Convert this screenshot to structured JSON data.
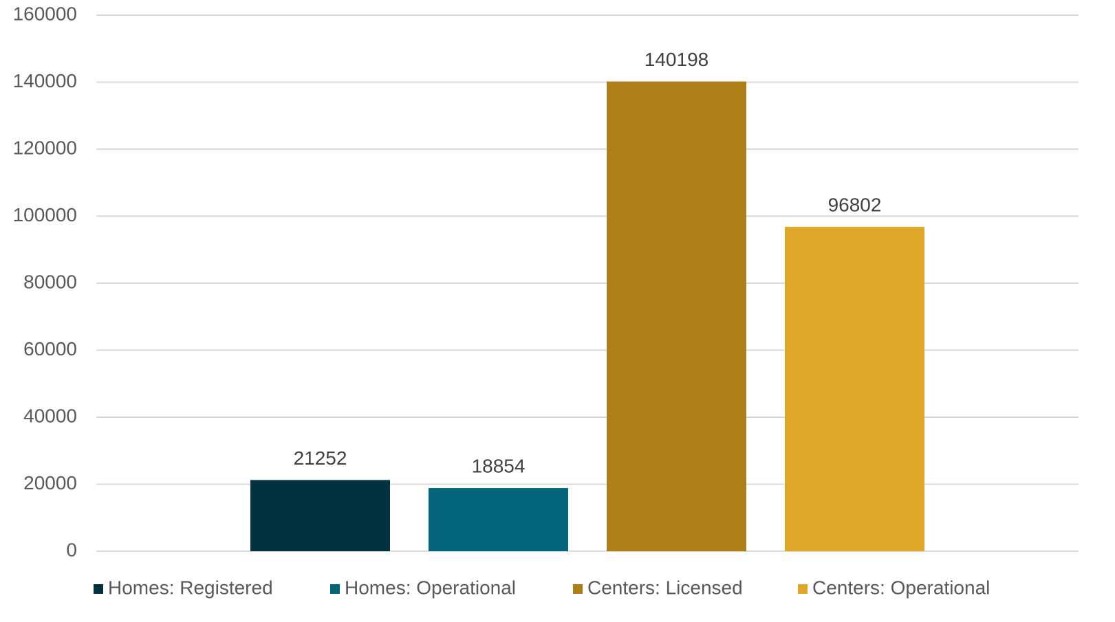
{
  "chart_data": {
    "type": "bar",
    "categories": [
      null
    ],
    "series": [
      {
        "name": "Homes: Registered",
        "color": "#02313f",
        "values": [
          21252
        ]
      },
      {
        "name": "Homes: Operational",
        "color": "#05657a",
        "values": [
          18854
        ]
      },
      {
        "name": "Centers: Licensed",
        "color": "#ae7e19",
        "values": [
          140198
        ]
      },
      {
        "name": "Centers: Operational",
        "color": "#dfa728",
        "values": [
          96802
        ]
      }
    ],
    "ylim": [
      0,
      160000
    ],
    "yticks": [
      0,
      20000,
      40000,
      60000,
      80000,
      100000,
      120000,
      140000,
      160000
    ],
    "grid": true,
    "legend": "bottom"
  }
}
